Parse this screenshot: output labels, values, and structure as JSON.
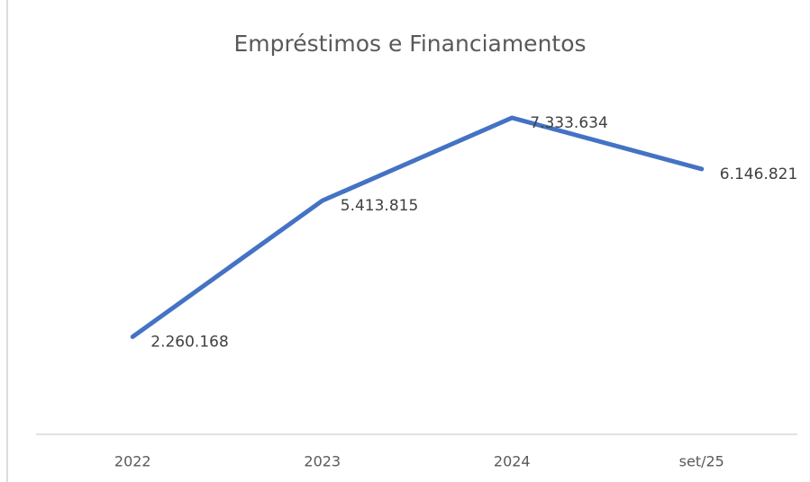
{
  "chart_data": {
    "type": "line",
    "title": "Empréstimos e Financiamentos",
    "categories": [
      "2022",
      "2023",
      "2024",
      "set/25"
    ],
    "series": [
      {
        "name": "Empréstimos e Financiamentos",
        "color": "#4472c4",
        "values": [
          2260168,
          5413815,
          7333634,
          6146821
        ],
        "value_labels": [
          "2.260.168",
          "5.413.815",
          "7.333.634",
          "6.146.821"
        ]
      }
    ],
    "ylim": [
      0,
      8000000
    ]
  }
}
